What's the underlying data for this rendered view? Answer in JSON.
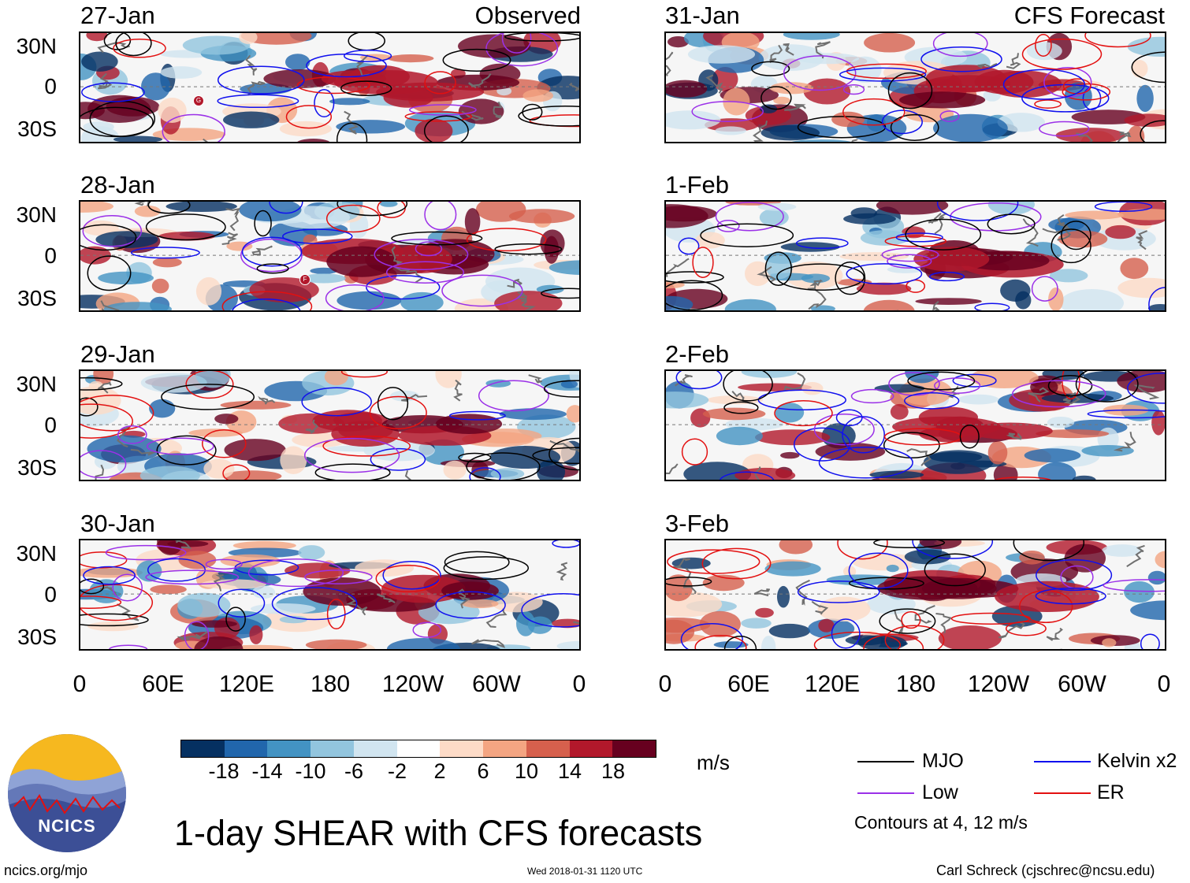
{
  "panels": [
    {
      "date": "27-Jan",
      "tag": "Observed"
    },
    {
      "date": "31-Jan",
      "tag": "CFS Forecast"
    },
    {
      "date": "28-Jan",
      "tag": ""
    },
    {
      "date": "1-Feb",
      "tag": ""
    },
    {
      "date": "29-Jan",
      "tag": ""
    },
    {
      "date": "2-Feb",
      "tag": ""
    },
    {
      "date": "30-Jan",
      "tag": ""
    },
    {
      "date": "3-Feb",
      "tag": ""
    }
  ],
  "lat_labels": [
    "30N",
    "0",
    "30S"
  ],
  "lon_labels": [
    "0",
    "60E",
    "120E",
    "180",
    "120W",
    "60W",
    "0"
  ],
  "storm_markers": [
    {
      "panel": "27-Jan",
      "label": "G"
    },
    {
      "panel": "28-Jan",
      "label": "F"
    }
  ],
  "colorbar": {
    "colors": [
      "#053061",
      "#2166ac",
      "#4393c3",
      "#92c5de",
      "#d1e5f0",
      "#ffffff",
      "#fddbc7",
      "#f4a582",
      "#d6604d",
      "#b2182b",
      "#67001f"
    ],
    "ticks": [
      "-18",
      "-14",
      "-10",
      "-6",
      "-2",
      "2",
      "6",
      "10",
      "14",
      "18"
    ],
    "units": "m/s"
  },
  "legend": {
    "items": [
      {
        "label": "MJO",
        "color": "#000000"
      },
      {
        "label": "Kelvin x2",
        "color": "#1010ee"
      },
      {
        "label": "Low",
        "color": "#9b30e8"
      },
      {
        "label": "ER",
        "color": "#e31010"
      }
    ],
    "note": "Contours at 4, 12 m/s"
  },
  "title": "1-day SHEAR with CFS forecasts",
  "logo_text": "NCICS",
  "footer": {
    "url": "ncics.org/mjo",
    "timestamp": "Wed 2018-01-31 1120 UTC",
    "author": "Carl Schreck (cjschrec@ncsu.edu)"
  }
}
